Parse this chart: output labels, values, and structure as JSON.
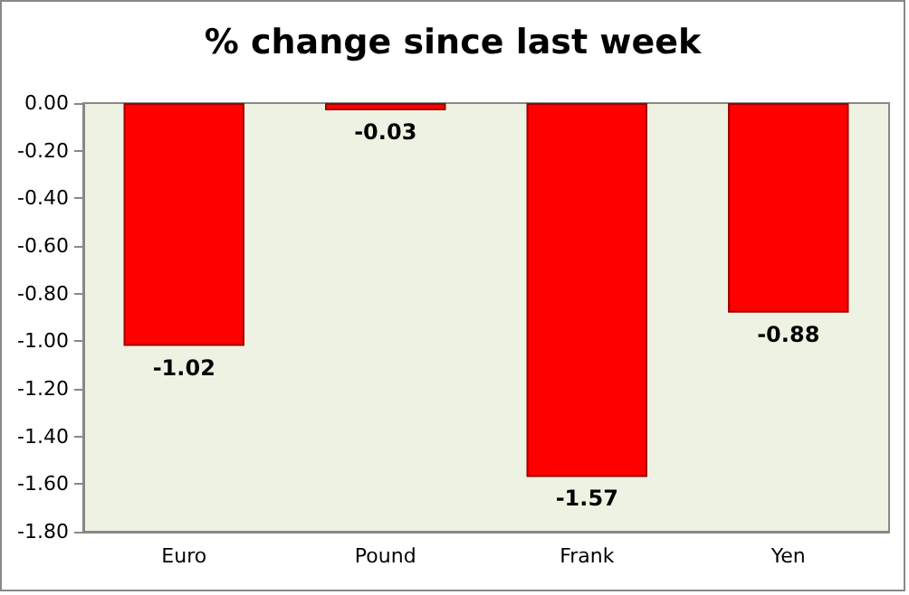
{
  "chart_data": {
    "type": "bar",
    "title": "% change since last week",
    "categories": [
      "Euro",
      "Pound",
      "Frank",
      "Yen"
    ],
    "values": [
      -1.02,
      -0.03,
      -1.57,
      -0.88
    ],
    "color": "#ff0000",
    "ylim": [
      -1.8,
      0
    ],
    "yticks": [
      {
        "value": 0,
        "label": "0.00"
      },
      {
        "value": -0.2,
        "label": "-0.20"
      },
      {
        "value": -0.4,
        "label": "-0.40"
      },
      {
        "value": -0.6,
        "label": "-0.60"
      },
      {
        "value": -0.8,
        "label": "-0.80"
      },
      {
        "value": -1.0,
        "label": "-1.00"
      },
      {
        "value": -1.2,
        "label": "-1.20"
      },
      {
        "value": -1.4,
        "label": "-1.40"
      },
      {
        "value": -1.6,
        "label": "-1.60"
      },
      {
        "value": -1.8,
        "label": "-1.80"
      }
    ],
    "data_labels": true,
    "grid": false
  }
}
